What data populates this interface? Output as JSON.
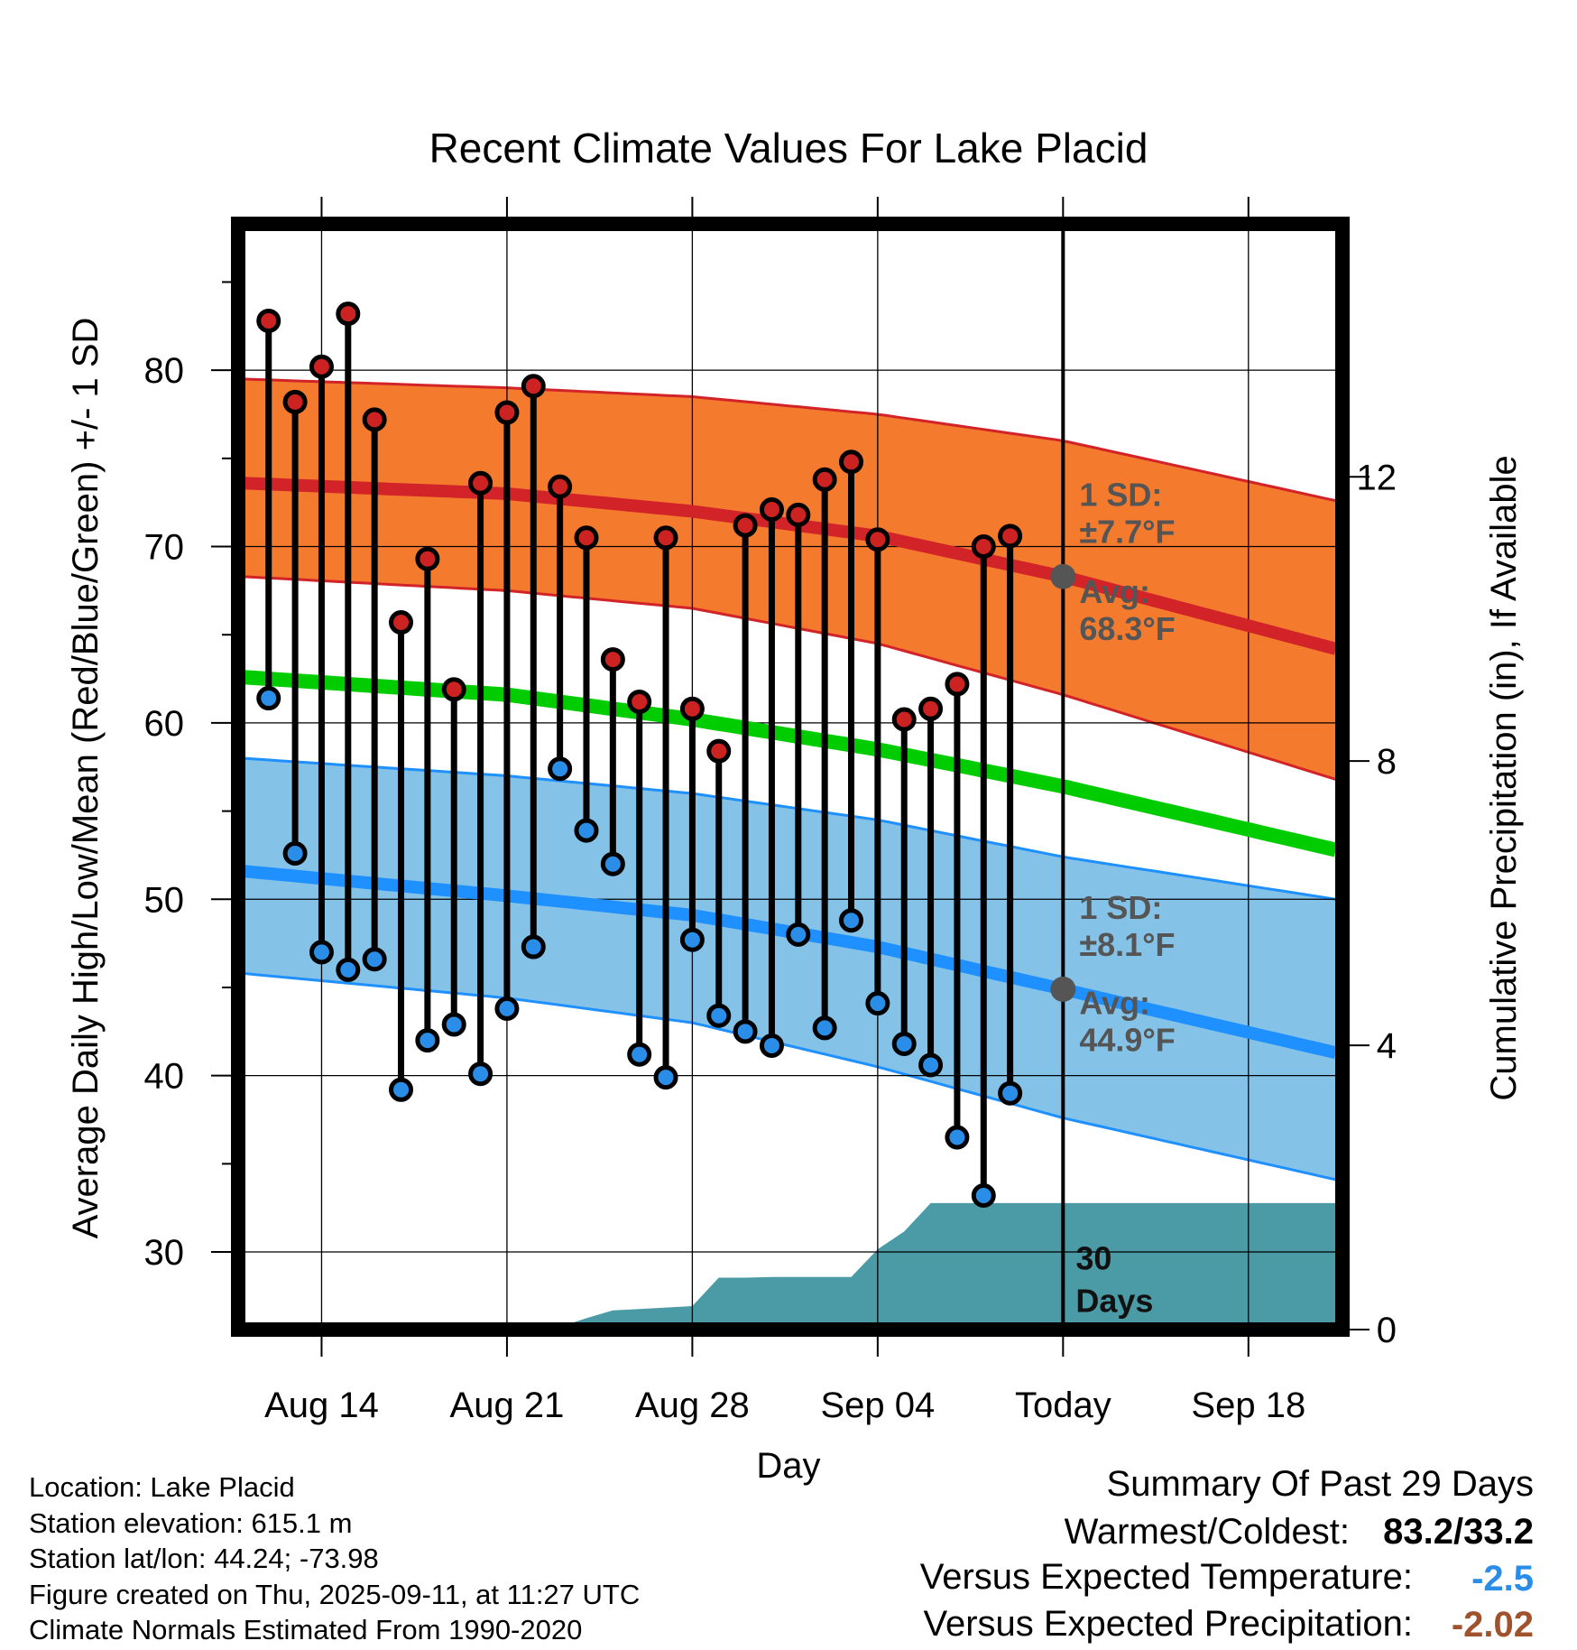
{
  "chart_data": {
    "type": "line",
    "title": "Recent Climate Values For Lake Placid",
    "xlabel": "Day",
    "ylabel": "Average Daily High/Low/Mean (Red/Blue/Green) +/- 1 SD",
    "y2label": "Cumulative Precipitation (in), If Available",
    "x_ticks": [
      {
        "day": 3,
        "label": "Aug 14"
      },
      {
        "day": 10,
        "label": "Aug 21"
      },
      {
        "day": 17,
        "label": "Aug 28"
      },
      {
        "day": 24,
        "label": "Sep 04"
      },
      {
        "day": 31,
        "label": "Today"
      },
      {
        "day": 38,
        "label": "Sep 18"
      }
    ],
    "xlim": [
      -0.15,
      41.55
    ],
    "ylim": [
      25.6,
      88.3
    ],
    "y_ticks": [
      30,
      40,
      50,
      60,
      70,
      80
    ],
    "y2lim": [
      0,
      15.56
    ],
    "y2_ticks": [
      0,
      4,
      8,
      12
    ],
    "today_day": 31,
    "normals": {
      "high_avg": {
        "x": [
          0,
          10,
          17,
          24,
          31,
          41.3
        ],
        "y": [
          73.6,
          73.0,
          72.0,
          70.6,
          68.3,
          64.2
        ]
      },
      "high_upper": {
        "x": [
          0,
          10,
          17,
          24,
          31,
          41.3
        ],
        "y": [
          79.5,
          79.0,
          78.5,
          77.5,
          76.0,
          72.6
        ]
      },
      "high_lower": {
        "x": [
          0,
          10,
          17,
          24,
          31,
          41.3
        ],
        "y": [
          68.3,
          67.5,
          66.5,
          64.5,
          61.6,
          56.8
        ]
      },
      "mean": {
        "x": [
          0,
          10,
          17,
          24,
          31,
          41.3
        ],
        "y": [
          62.6,
          61.6,
          60.2,
          58.5,
          56.4,
          52.8
        ]
      },
      "low_avg": {
        "x": [
          0,
          10,
          17,
          24,
          31,
          41.3
        ],
        "y": [
          51.6,
          50.2,
          49.1,
          47.3,
          44.9,
          41.3
        ]
      },
      "low_upper": {
        "x": [
          0,
          10,
          17,
          24,
          31,
          41.3
        ],
        "y": [
          58.0,
          57.0,
          56.0,
          54.5,
          52.4,
          50.0
        ]
      },
      "low_lower": {
        "x": [
          0,
          10,
          17,
          24,
          31,
          41.3
        ],
        "y": [
          45.8,
          44.4,
          43.0,
          40.5,
          37.6,
          34.1
        ]
      }
    },
    "observed": {
      "days": [
        1,
        2,
        3,
        4,
        5,
        6,
        7,
        8,
        9,
        10,
        11,
        12,
        13,
        14,
        15,
        16,
        17,
        18,
        19,
        20,
        21,
        22,
        23,
        24,
        25,
        26,
        27,
        28,
        29,
        30
      ],
      "highs": [
        82.8,
        78.2,
        80.2,
        83.2,
        77.2,
        65.7,
        69.3,
        61.9,
        73.6,
        77.6,
        79.1,
        73.4,
        70.5,
        63.6,
        61.2,
        70.5,
        60.8,
        58.4,
        71.2,
        72.1,
        71.8,
        73.8,
        74.8,
        70.4,
        60.2,
        60.8,
        62.2,
        70.0,
        70.6,
        null
      ],
      "lows": [
        61.4,
        52.6,
        47.0,
        46.0,
        46.6,
        39.2,
        42.0,
        42.9,
        40.1,
        43.8,
        47.3,
        57.4,
        53.9,
        52.0,
        41.2,
        39.9,
        47.7,
        43.4,
        42.5,
        41.7,
        48.0,
        42.7,
        48.8,
        44.1,
        41.8,
        40.6,
        36.5,
        33.2,
        39.0,
        null
      ]
    },
    "precip_cumulative": {
      "x": [
        0,
        7,
        8,
        9,
        10,
        11,
        12,
        13,
        14,
        15,
        16,
        17,
        18,
        19,
        20,
        21,
        22,
        23,
        24,
        25,
        26,
        41.3
      ],
      "y": [
        0,
        0,
        0.02,
        0.04,
        0.04,
        0.04,
        0.04,
        0.16,
        0.27,
        0.29,
        0.31,
        0.33,
        0.73,
        0.73,
        0.74,
        0.74,
        0.74,
        0.74,
        1.13,
        1.38,
        1.78,
        1.78
      ]
    },
    "annotations": {
      "high_sd": "1 SD:",
      "high_sd_val": "±7.7°F",
      "high_avg": "Avg:",
      "high_avg_val": "68.3°F",
      "low_sd": "1 SD:",
      "low_sd_val": "±8.1°F",
      "low_avg": "Avg:",
      "low_avg_val": "44.9°F",
      "days_num": "30",
      "days_word": "Days"
    },
    "colors": {
      "high_band": "#f47a2e",
      "high_line": "#d22328",
      "mean_line": "#00cc00",
      "low_band": "#85c2e8",
      "low_line": "#1e90ff",
      "precip": "#4a9ba5",
      "high_dot": "#cc2222",
      "low_dot": "#2a8ee8",
      "annotation": "#555555",
      "neg_temp": "#2a8ee8",
      "neg_precip": "#a0522d"
    }
  },
  "info": {
    "location": "Location: Lake Placid",
    "elevation": "Station elevation: 615.1 m",
    "latlon": "Station lat/lon: 44.24; -73.98",
    "created": "Figure created on Thu, 2025-09-11, at 11:27 UTC",
    "normals": "Climate Normals Estimated From 1990-2020"
  },
  "summary": {
    "heading": "Summary Of Past 29 Days",
    "warmest_label": "Warmest/Coldest:",
    "warmest_value": "83.2/33.2",
    "temp_label": "Versus Expected Temperature:",
    "temp_value": "-2.5",
    "precip_label": "Versus Expected Precipitation:",
    "precip_value": "-2.02"
  }
}
